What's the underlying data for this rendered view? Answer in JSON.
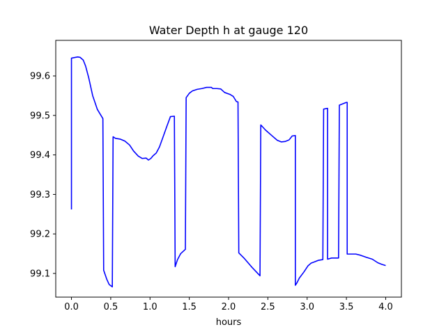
{
  "chart_data": {
    "type": "line",
    "title": "Water Depth h at gauge 120",
    "xlabel": "hours",
    "ylabel": "",
    "xlim": [
      -0.2,
      4.2
    ],
    "ylim": [
      99.04,
      99.69
    ],
    "xticks": [
      0.0,
      0.5,
      1.0,
      1.5,
      2.0,
      2.5,
      3.0,
      3.5,
      4.0
    ],
    "xtick_labels": [
      "0.0",
      "0.5",
      "1.0",
      "1.5",
      "2.0",
      "2.5",
      "3.0",
      "3.5",
      "4.0"
    ],
    "yticks": [
      99.1,
      99.2,
      99.3,
      99.4,
      99.5,
      99.6
    ],
    "ytick_labels": [
      "99.1",
      "99.2",
      "99.3",
      "99.4",
      "99.5",
      "99.6"
    ],
    "grid": false,
    "series": [
      {
        "color": "#0000ff",
        "x": [
          0.0,
          0.0,
          0.05,
          0.08,
          0.11,
          0.15,
          0.18,
          0.22,
          0.27,
          0.33,
          0.4,
          0.41,
          0.45,
          0.48,
          0.52,
          0.53,
          0.56,
          0.62,
          0.68,
          0.74,
          0.79,
          0.85,
          0.9,
          0.95,
          0.98,
          1.01,
          1.04,
          1.08,
          1.12,
          1.16,
          1.21,
          1.26,
          1.31,
          1.32,
          1.35,
          1.39,
          1.45,
          1.46,
          1.5,
          1.54,
          1.6,
          1.66,
          1.72,
          1.78,
          1.8,
          1.85,
          1.9,
          1.95,
          2.02,
          2.06,
          2.1,
          2.12,
          2.13,
          2.2,
          2.3,
          2.4,
          2.41,
          2.47,
          2.55,
          2.62,
          2.67,
          2.72,
          2.77,
          2.81,
          2.85,
          2.85,
          2.87,
          2.9,
          2.96,
          3.01,
          3.05,
          3.09,
          3.14,
          3.2,
          3.21,
          3.21,
          3.26,
          3.26,
          3.31,
          3.36,
          3.4,
          3.41,
          3.41,
          3.5,
          3.51,
          3.51,
          3.55,
          3.62,
          3.68,
          3.75,
          3.83,
          3.9,
          3.95,
          4.0
        ],
        "y": [
          99.262,
          99.645,
          99.647,
          99.648,
          99.647,
          99.64,
          99.625,
          99.595,
          99.55,
          99.515,
          99.492,
          99.108,
          99.085,
          99.072,
          99.066,
          99.446,
          99.442,
          99.44,
          99.435,
          99.425,
          99.41,
          99.397,
          99.391,
          99.392,
          99.387,
          99.391,
          99.398,
          99.405,
          99.42,
          99.442,
          99.47,
          99.497,
          99.498,
          99.117,
          99.135,
          99.15,
          99.161,
          99.545,
          99.556,
          99.562,
          99.566,
          99.568,
          99.571,
          99.571,
          99.568,
          99.568,
          99.567,
          99.558,
          99.553,
          99.548,
          99.535,
          99.534,
          99.152,
          99.138,
          99.115,
          99.094,
          99.476,
          99.463,
          99.449,
          99.437,
          99.433,
          99.434,
          99.438,
          99.448,
          99.449,
          99.07,
          99.076,
          99.088,
          99.104,
          99.119,
          99.126,
          99.129,
          99.133,
          99.135,
          99.515,
          99.516,
          99.518,
          99.136,
          99.139,
          99.139,
          99.139,
          99.522,
          99.526,
          99.533,
          99.533,
          99.149,
          99.149,
          99.149,
          99.146,
          99.141,
          99.136,
          99.127,
          99.123,
          99.12
        ]
      }
    ]
  }
}
